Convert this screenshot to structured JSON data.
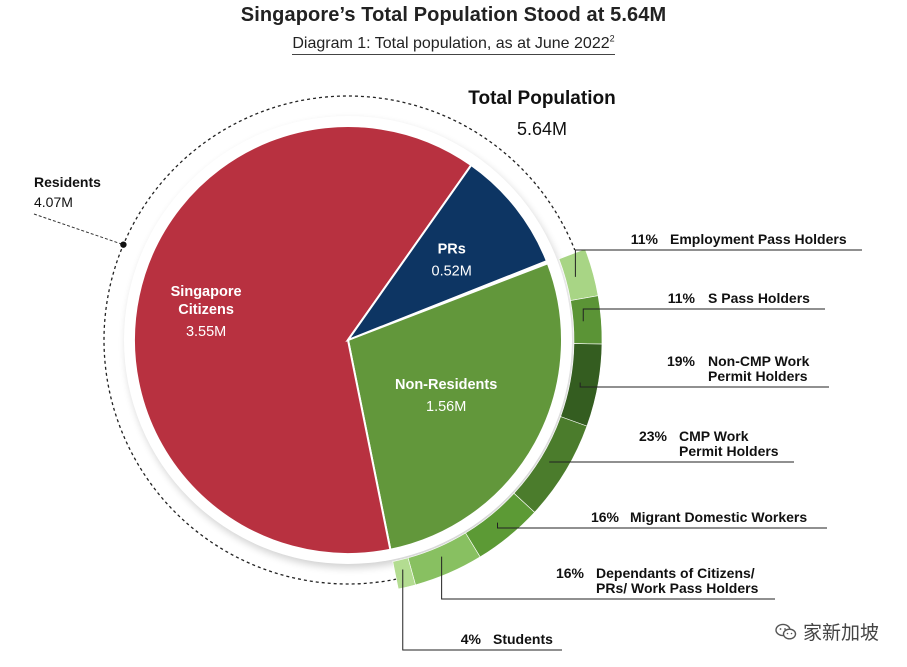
{
  "header": {
    "title": "Singapore’s Total Population Stood at 5.64M",
    "subtitle": "Diagram 1: Total population, as at June 2022",
    "footnote_mark": "2"
  },
  "watermark": {
    "text": "家新加坡",
    "icon": "wechat-icon"
  },
  "chart_data": {
    "type": "pie",
    "title": "Total Population",
    "total": "5.64M",
    "total_value": 5.64,
    "residents_group": {
      "label": "Residents",
      "value_text": "4.07M",
      "value": 4.07
    },
    "slices": [
      {
        "name": "Singapore Citizens",
        "label_lines": [
          "Singapore",
          "Citizens"
        ],
        "value": 3.55,
        "value_text": "3.55M",
        "color": "#b83140"
      },
      {
        "name": "PRs",
        "label_lines": [
          "PRs"
        ],
        "value": 0.52,
        "value_text": "0.52M",
        "color": "#0d3563"
      },
      {
        "name": "Non-Residents",
        "label_lines": [
          "Non-Residents"
        ],
        "value": 1.56,
        "value_text": "1.56M",
        "color": "#62973b"
      }
    ],
    "non_resident_breakdown": [
      {
        "pct": 11,
        "pct_text": "11%",
        "label_lines": [
          "Employment Pass Holders"
        ],
        "color": "#a8d585"
      },
      {
        "pct": 11,
        "pct_text": "11%",
        "label_lines": [
          "S Pass Holders"
        ],
        "color": "#5b9436"
      },
      {
        "pct": 19,
        "pct_text": "19%",
        "label_lines": [
          "Non-CMP Work",
          "Permit Holders"
        ],
        "color": "#345d20"
      },
      {
        "pct": 23,
        "pct_text": "23%",
        "label_lines": [
          "CMP Work",
          "Permit Holders"
        ],
        "color": "#4b7c2c"
      },
      {
        "pct": 16,
        "pct_text": "16%",
        "label_lines": [
          "Migrant Domestic Workers"
        ],
        "color": "#5c9a35"
      },
      {
        "pct": 16,
        "pct_text": "16%",
        "label_lines": [
          "Dependants of Citizens/",
          "PRs/ Work Pass Holders"
        ],
        "color": "#88c061"
      },
      {
        "pct": 4,
        "pct_text": "4%",
        "label_lines": [
          "Students"
        ],
        "color": "#b3dc91"
      }
    ],
    "colors": {
      "citizens": "#b83140",
      "prs": "#0d3563",
      "non_residents": "#62973b",
      "leader_line": "#222222"
    }
  }
}
